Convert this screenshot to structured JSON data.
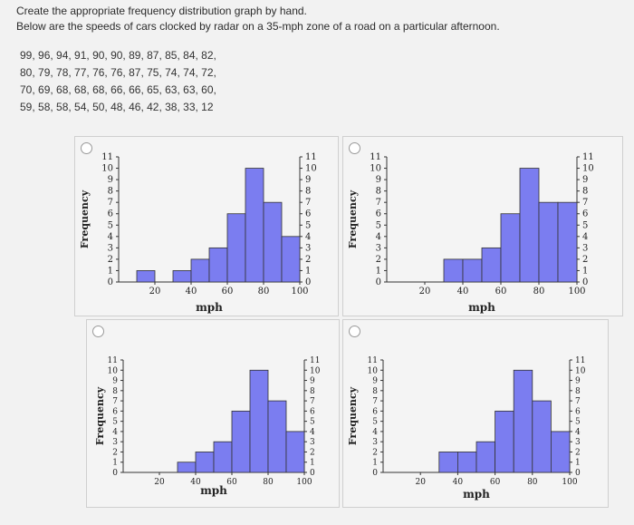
{
  "question": {
    "line1": "Create the appropriate frequency distribution graph by hand.",
    "line2": "Below are the speeds of cars clocked by radar on a 35-mph zone of a road on a particular afternoon."
  },
  "data_lines": [
    "99, 96, 94, 91, 90, 90, 89, 87, 85, 84, 82,",
    "80, 79, 78, 77, 76, 76, 87, 75, 74, 74, 72,",
    "70, 69, 68, 68, 68, 66, 66, 65, 63, 63, 60,",
    "59, 58, 58, 54, 50, 48, 46, 42, 38, 33, 12"
  ],
  "chart_data": [
    {
      "type": "bar",
      "ylabel": "Frequency",
      "xlabel": "mph",
      "x_ticks": [
        20,
        40,
        60,
        80,
        100
      ],
      "y_ticks": [
        0,
        1,
        2,
        3,
        4,
        5,
        6,
        7,
        8,
        9,
        10,
        11
      ],
      "ylim": [
        0,
        11
      ],
      "xlim": [
        0,
        100
      ],
      "bin_edges": [
        10,
        20,
        30,
        40,
        50,
        60,
        70,
        80,
        90,
        100
      ],
      "values": [
        1,
        0,
        1,
        2,
        3,
        6,
        10,
        7,
        4
      ],
      "bar_color": "#7b7df0"
    },
    {
      "type": "bar",
      "ylabel": "Frequency",
      "xlabel": "mph",
      "x_ticks": [
        20,
        40,
        60,
        80,
        100
      ],
      "y_ticks": [
        0,
        1,
        2,
        3,
        4,
        5,
        6,
        7,
        8,
        9,
        10,
        11
      ],
      "ylim": [
        0,
        11
      ],
      "xlim": [
        0,
        100
      ],
      "bin_edges": [
        30,
        40,
        50,
        60,
        70,
        80,
        90,
        100
      ],
      "values": [
        2,
        2,
        3,
        6,
        10,
        7,
        7
      ],
      "bar_color": "#7b7df0"
    },
    {
      "type": "bar",
      "ylabel": "Frequency",
      "xlabel": "mph",
      "x_ticks": [
        20,
        40,
        60,
        80,
        100
      ],
      "y_ticks": [
        0,
        1,
        2,
        3,
        4,
        5,
        6,
        7,
        8,
        9,
        10,
        11
      ],
      "ylim": [
        0,
        11
      ],
      "xlim": [
        0,
        100
      ],
      "bin_edges": [
        30,
        40,
        50,
        60,
        70,
        80,
        90,
        100
      ],
      "values": [
        1,
        2,
        3,
        6,
        10,
        7,
        4
      ],
      "bar_color": "#7b7df0"
    },
    {
      "type": "bar",
      "ylabel": "Frequency",
      "xlabel": "mph",
      "x_ticks": [
        20,
        40,
        60,
        80,
        100
      ],
      "y_ticks": [
        0,
        1,
        2,
        3,
        4,
        5,
        6,
        7,
        8,
        9,
        10,
        11
      ],
      "ylim": [
        0,
        11
      ],
      "xlim": [
        0,
        100
      ],
      "bin_edges": [
        30,
        40,
        50,
        60,
        70,
        80,
        90,
        100
      ],
      "values": [
        2,
        2,
        3,
        6,
        10,
        7,
        4
      ],
      "bar_color": "#7b7df0"
    }
  ]
}
